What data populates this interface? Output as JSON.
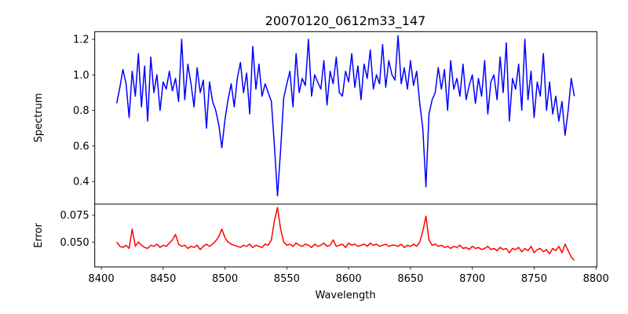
{
  "chart_data": [
    {
      "type": "line",
      "title": "20070120_0612m33_147",
      "xlabel": "",
      "ylabel": "Spectrum",
      "xlim": [
        8394.7,
        8800.7
      ],
      "ylim": [
        0.273,
        1.243
      ],
      "yticks": [
        "0.4",
        "0.6",
        "0.8",
        "1.0",
        "1.2"
      ],
      "ytick_values": [
        0.4,
        0.6,
        0.8,
        1.0,
        1.2
      ],
      "color": "#0000ff",
      "x_start": 8412.5,
      "x_step": 2.5,
      "values": [
        0.84,
        0.93,
        1.03,
        0.95,
        0.76,
        1.02,
        0.88,
        1.12,
        0.82,
        1.05,
        0.74,
        1.1,
        0.9,
        1.0,
        0.8,
        0.96,
        0.92,
        1.02,
        0.91,
        0.98,
        0.85,
        1.2,
        0.86,
        1.06,
        0.95,
        0.82,
        1.04,
        0.9,
        0.97,
        0.7,
        0.96,
        0.85,
        0.8,
        0.72,
        0.59,
        0.75,
        0.86,
        0.95,
        0.82,
        0.98,
        1.07,
        0.9,
        1.01,
        0.78,
        1.16,
        0.92,
        1.06,
        0.88,
        0.95,
        0.9,
        0.85,
        0.6,
        0.32,
        0.58,
        0.87,
        0.95,
        1.02,
        0.82,
        1.12,
        0.9,
        0.98,
        0.94,
        1.2,
        0.88,
        1.0,
        0.96,
        0.92,
        1.08,
        0.83,
        1.02,
        0.95,
        1.1,
        0.9,
        0.88,
        1.02,
        0.96,
        1.12,
        0.93,
        1.05,
        0.86,
        1.06,
        0.98,
        1.14,
        0.92,
        1.0,
        0.95,
        1.17,
        0.93,
        1.08,
        1.0,
        0.97,
        1.22,
        0.95,
        1.04,
        0.92,
        1.08,
        0.94,
        1.02,
        0.84,
        0.7,
        0.37,
        0.78,
        0.86,
        0.9,
        1.04,
        0.92,
        1.03,
        0.8,
        1.08,
        0.92,
        0.98,
        0.88,
        1.06,
        0.86,
        0.94,
        1.0,
        0.84,
        0.98,
        0.88,
        1.08,
        0.78,
        0.96,
        1.0,
        0.86,
        1.1,
        0.9,
        1.18,
        0.74,
        0.98,
        0.92,
        1.06,
        0.8,
        1.2,
        0.86,
        1.02,
        0.76,
        0.96,
        0.88,
        1.12,
        0.8,
        0.96,
        0.78,
        0.88,
        0.74,
        0.85,
        0.66,
        0.8,
        0.98,
        0.88
      ]
    },
    {
      "type": "line",
      "title": "",
      "xlabel": "Wavelength",
      "ylabel": "Error",
      "xlim": [
        8394.7,
        8800.7
      ],
      "ylim": [
        0.0269,
        0.0852
      ],
      "xticks": [
        "8400",
        "8450",
        "8500",
        "8550",
        "8600",
        "8650",
        "8700",
        "8750",
        "8800"
      ],
      "xtick_values": [
        8400,
        8450,
        8500,
        8550,
        8600,
        8650,
        8700,
        8750,
        8800
      ],
      "yticks": [
        "0.050",
        "0.075"
      ],
      "ytick_values": [
        0.05,
        0.075
      ],
      "color": "#ff0000",
      "x_start": 8412.5,
      "x_step": 2.5,
      "values": [
        0.05,
        0.046,
        0.045,
        0.047,
        0.044,
        0.062,
        0.046,
        0.05,
        0.047,
        0.045,
        0.044,
        0.047,
        0.046,
        0.048,
        0.045,
        0.047,
        0.046,
        0.049,
        0.052,
        0.057,
        0.048,
        0.046,
        0.047,
        0.044,
        0.046,
        0.045,
        0.047,
        0.043,
        0.046,
        0.048,
        0.046,
        0.048,
        0.051,
        0.055,
        0.062,
        0.054,
        0.05,
        0.048,
        0.047,
        0.046,
        0.045,
        0.047,
        0.046,
        0.048,
        0.045,
        0.047,
        0.046,
        0.045,
        0.048,
        0.047,
        0.052,
        0.07,
        0.082,
        0.062,
        0.05,
        0.047,
        0.048,
        0.046,
        0.049,
        0.047,
        0.046,
        0.048,
        0.047,
        0.045,
        0.048,
        0.046,
        0.047,
        0.049,
        0.046,
        0.047,
        0.052,
        0.046,
        0.047,
        0.048,
        0.045,
        0.049,
        0.047,
        0.048,
        0.046,
        0.047,
        0.048,
        0.046,
        0.049,
        0.047,
        0.048,
        0.046,
        0.047,
        0.048,
        0.046,
        0.047,
        0.047,
        0.046,
        0.048,
        0.045,
        0.047,
        0.046,
        0.048,
        0.046,
        0.05,
        0.06,
        0.074,
        0.052,
        0.047,
        0.048,
        0.046,
        0.047,
        0.045,
        0.046,
        0.044,
        0.046,
        0.045,
        0.047,
        0.044,
        0.045,
        0.043,
        0.046,
        0.044,
        0.045,
        0.043,
        0.044,
        0.046,
        0.043,
        0.044,
        0.042,
        0.045,
        0.043,
        0.044,
        0.04,
        0.044,
        0.043,
        0.045,
        0.041,
        0.044,
        0.042,
        0.046,
        0.04,
        0.043,
        0.044,
        0.041,
        0.043,
        0.039,
        0.044,
        0.042,
        0.046,
        0.04,
        0.048,
        0.042,
        0.036,
        0.033
      ]
    }
  ]
}
